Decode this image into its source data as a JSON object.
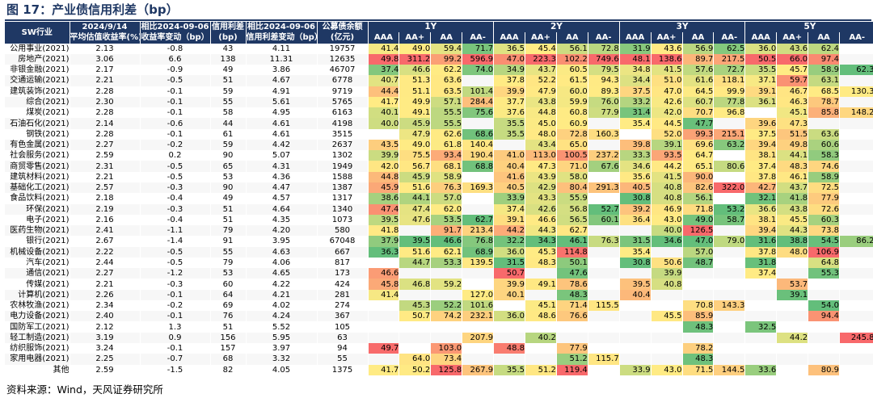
{
  "title": "图 17：产业债信用利差（bp）",
  "source": "资料来源：Wind，天风证券研究所",
  "header": {
    "row1": [
      "SW行业",
      "2024/9/14",
      "相比2024-09-06",
      "信用利差",
      "相比2024-09-06",
      "公募债余额"
    ],
    "row2": [
      "平均估值收益率(%)",
      "收益率变动（bp）",
      "(bp)",
      "信用利差变动（bp）",
      "(亿元)"
    ],
    "groups": [
      "1Y",
      "2Y",
      "3Y",
      "5Y"
    ],
    "ratings": [
      "AAA",
      "AA+",
      "AA",
      "AA-"
    ]
  },
  "colors": {
    "header_bg": "#1f3864",
    "low": "#63be7b",
    "mid": "#ffeb84",
    "high": "#f8696b"
  },
  "chart_data": {
    "type": "heatmap",
    "title": "图 17：产业债信用利差（bp）",
    "columns": [
      "SW行业",
      "2024/9/14 平均估值收益率(%)",
      "相比2024-09-06 收益率变动（bp）",
      "信用利差 (bp)",
      "相比2024-09-06 信用利差变动（bp）",
      "公募债余额 (亿元)",
      "1Y AAA",
      "1Y AA+",
      "1Y AA",
      "1Y AA-",
      "2Y AAA",
      "2Y AA+",
      "2Y AA",
      "2Y AA-",
      "3Y AAA",
      "3Y AA+",
      "3Y AA",
      "3Y AA-",
      "5Y AAA",
      "5Y AA+",
      "5Y AA",
      "5Y AA-"
    ],
    "rows": [
      [
        "公用事业(2021)",
        "2.13",
        "-0.8",
        "43",
        "4.11",
        "19757",
        "41.4",
        "49.0",
        "59.4",
        "71.7",
        "36.5",
        "45.4",
        "56.1",
        "72.8",
        "31.9",
        "43.6",
        "56.9",
        "62.5",
        "36.0",
        "43.6",
        "62.4",
        ""
      ],
      [
        "房地产(2021)",
        "3.06",
        "6.6",
        "138",
        "11.31",
        "12635",
        "49.8",
        "311.2",
        "99.2",
        "596.9",
        "47.0",
        "223.3",
        "102.2",
        "749.6",
        "48.1",
        "138.6",
        "89.7",
        "217.5",
        "50.5",
        "66.0",
        "97.4",
        ""
      ],
      [
        "非银金融(2021)",
        "2.17",
        "-0.9",
        "49",
        "3.86",
        "46707",
        "37.4",
        "46.6",
        "62.2",
        "74.0",
        "34.9",
        "43.7",
        "60.5",
        "79.5",
        "34.8",
        "41.5",
        "57.6",
        "72.7",
        "35.5",
        "45.7",
        "58.9",
        "62.3"
      ],
      [
        "交通运输(2021)",
        "2.21",
        "-0.5",
        "51",
        "4.67",
        "6778",
        "40.7",
        "51.3",
        "63.6",
        "",
        "37.8",
        "52.2",
        "61.5",
        "94.3",
        "34.4",
        "51.0",
        "61.6",
        "118.1",
        "37.1",
        "59.7",
        "63.1",
        ""
      ],
      [
        "建筑装饰(2021)",
        "2.28",
        "-0.1",
        "59",
        "4.91",
        "9719",
        "44.4",
        "51.1",
        "63.5",
        "101.4",
        "39.9",
        "47.9",
        "60.0",
        "89.3",
        "37.5",
        "47.0",
        "64.5",
        "99.9",
        "39.1",
        "46.7",
        "68.5",
        "130.3"
      ],
      [
        "综合(2021)",
        "2.30",
        "-0.1",
        "55",
        "5.61",
        "5765",
        "41.7",
        "49.9",
        "57.1",
        "284.4",
        "37.7",
        "43.8",
        "59.9",
        "76.0",
        "33.2",
        "42.6",
        "60.7",
        "77.8",
        "36.1",
        "46.3",
        "78.7",
        ""
      ],
      [
        "煤炭(2021)",
        "2.28",
        "-0.1",
        "58",
        "4.95",
        "6163",
        "40.1",
        "49.1",
        "55.5",
        "75.6",
        "37.6",
        "44.8",
        "60.8",
        "77.9",
        "31.4",
        "42.0",
        "70.7",
        "96.8",
        "",
        "45.1",
        "85.8",
        "148.2"
      ],
      [
        "石油石化(2021)",
        "2.14",
        "-0.6",
        "44",
        "4.61",
        "4198",
        "40.0",
        "45.9",
        "55.5",
        "",
        "35.5",
        "45.0",
        "60.9",
        "",
        "35.4",
        "44.5",
        "47.7",
        "",
        "39.6",
        "47.3",
        "",
        ""
      ],
      [
        "钢铁(2021)",
        "2.28",
        "-0.1",
        "61",
        "4.61",
        "3515",
        "",
        "47.9",
        "62.6",
        "68.6",
        "35.5",
        "48.0",
        "72.8",
        "160.3",
        "",
        "52.0",
        "99.3",
        "215.1",
        "37.5",
        "51.5",
        "63.6",
        ""
      ],
      [
        "有色金属(2021)",
        "2.27",
        "-0.2",
        "59",
        "4.42",
        "2637",
        "43.5",
        "49.0",
        "61.8",
        "140.4",
        "",
        "43.4",
        "65.0",
        "",
        "39.8",
        "39.1",
        "69.6",
        "63.2",
        "39.4",
        "49.8",
        "60.6",
        ""
      ],
      [
        "社会服务(2021)",
        "2.59",
        "0.2",
        "90",
        "5.07",
        "1302",
        "39.9",
        "75.5",
        "93.4",
        "190.4",
        "41.0",
        "113.0",
        "100.5",
        "237.2",
        "33.3",
        "93.5",
        "64.7",
        "",
        "38.1",
        "44.1",
        "58.3",
        ""
      ],
      [
        "商贸零售(2021)",
        "2.31",
        "-0.5",
        "65",
        "4.31",
        "1949",
        "42.0",
        "56.7",
        "68.1",
        "68.8",
        "40.4",
        "47.3",
        "71.0",
        "67.6",
        "34.6",
        "44.2",
        "65.1",
        "80.6",
        "37.4",
        "48.3",
        "74.6",
        ""
      ],
      [
        "建筑材料(2021)",
        "2.21",
        "-0.5",
        "53",
        "4.36",
        "1588",
        "44.8",
        "45.9",
        "58.9",
        "",
        "41.6",
        "43.9",
        "58.0",
        "",
        "35.6",
        "41.5",
        "90.0",
        "",
        "37.8",
        "46.1",
        "58.9",
        ""
      ],
      [
        "基础化工(2021)",
        "2.57",
        "-0.3",
        "90",
        "4.47",
        "1387",
        "45.9",
        "51.6",
        "76.3",
        "169.3",
        "40.5",
        "42.9",
        "80.4",
        "291.3",
        "40.5",
        "40.8",
        "82.6",
        "322.0",
        "42.7",
        "43.7",
        "72.5",
        ""
      ],
      [
        "食品饮料(2021)",
        "2.18",
        "-0.4",
        "49",
        "4.57",
        "1317",
        "38.6",
        "44.1",
        "57.0",
        "",
        "33.9",
        "43.3",
        "55.9",
        "",
        "30.8",
        "40.8",
        "56.1",
        "",
        "32.1",
        "41.8",
        "77.9",
        ""
      ],
      [
        "环保(2021)",
        "2.19",
        "-0.3",
        "51",
        "4.64",
        "1340",
        "47.4",
        "47.4",
        "62.0",
        "",
        "37.4",
        "42.6",
        "56.8",
        "52.7",
        "39.2",
        "46.9",
        "71.8",
        "53.2",
        "36.6",
        "43.8",
        "72.6",
        ""
      ],
      [
        "电子(2021)",
        "2.16",
        "-0.4",
        "51",
        "4.35",
        "1073",
        "39.5",
        "47.6",
        "53.5",
        "62.7",
        "39.1",
        "46.6",
        "56.5",
        "60.1",
        "36.4",
        "43.0",
        "49.0",
        "58.7",
        "38.1",
        "45.5",
        "60.3",
        ""
      ],
      [
        "医药生物(2021)",
        "2.41",
        "-1.1",
        "79",
        "4.20",
        "580",
        "41.8",
        "",
        "91.7",
        "213.4",
        "44.2",
        "44.3",
        "62.7",
        "",
        "",
        "40.0",
        "126.5",
        "",
        "39.4",
        "44.3",
        "73.8",
        ""
      ],
      [
        "银行(2021)",
        "2.67",
        "-1.4",
        "91",
        "3.95",
        "67048",
        "37.9",
        "39.5",
        "46.6",
        "76.8",
        "32.2",
        "34.3",
        "46.1",
        "76.3",
        "31.5",
        "34.6",
        "47.0",
        "79.0",
        "31.6",
        "38.8",
        "54.5",
        "86.2"
      ],
      [
        "机械设备(2021)",
        "2.22",
        "-0.5",
        "55",
        "4.63",
        "667",
        "36.3",
        "51.6",
        "62.1",
        "68.9",
        "36.0",
        "45.3",
        "114.8",
        "",
        "35.4",
        "",
        "57.0",
        "",
        "37.8",
        "48.0",
        "106.9",
        ""
      ],
      [
        "汽车(2021)",
        "2.44",
        "-0.5",
        "79",
        "4.06",
        "817",
        "",
        "44.7",
        "53.3",
        "139.5",
        "31.5",
        "48.3",
        "50.1",
        "",
        "30.8",
        "50.6",
        "48.7",
        "",
        "31.8",
        "",
        "64.8",
        ""
      ],
      [
        "通信(2021)",
        "2.27",
        "-1.2",
        "53",
        "4.65",
        "173",
        "46.6",
        "",
        "",
        "",
        "50.7",
        "",
        "47.6",
        "",
        "",
        "39.9",
        "",
        "",
        "37.4",
        "",
        "55.3",
        ""
      ],
      [
        "传媒(2021)",
        "2.21",
        "-0.3",
        "60",
        "4.22",
        "424",
        "45.8",
        "46.8",
        "59.2",
        "",
        "39.9",
        "49.1",
        "78.6",
        "",
        "39.5",
        "40.8",
        "",
        "",
        "",
        "53.7",
        "",
        ""
      ],
      [
        "计算机(2021)",
        "2.26",
        "-0.1",
        "64",
        "4.21",
        "281",
        "41.4",
        "",
        "",
        "127.0",
        "40.1",
        "",
        "48.3",
        "",
        "40.4",
        "",
        "",
        "",
        "",
        "39.1",
        "",
        ""
      ],
      [
        "农林牧渔(2021)",
        "2.34",
        "-0.2",
        "69",
        "4.02",
        "274",
        "",
        "45.3",
        "52.2",
        "101.6",
        "",
        "45.1",
        "71.4",
        "115.5",
        "",
        "",
        "70.8",
        "143.3",
        "",
        "",
        "54.0",
        ""
      ],
      [
        "电力设备(2021)",
        "2.40",
        "-0.1",
        "76",
        "4.24",
        "367",
        "",
        "50.7",
        "74.2",
        "232.1",
        "36.0",
        "48.6",
        "76.6",
        "",
        "",
        "45.5",
        "85.9",
        "",
        "",
        "",
        "94.4",
        ""
      ],
      [
        "国防军工(2021)",
        "2.12",
        "1.3",
        "51",
        "5.52",
        "105",
        "",
        "",
        "",
        "",
        "",
        "",
        "",
        "",
        "",
        "",
        "48.3",
        "",
        "32.5",
        "",
        "",
        ""
      ],
      [
        "轻工制造(2021)",
        "3.19",
        "0.9",
        "156",
        "5.95",
        "63",
        "",
        "",
        "",
        "207.9",
        "",
        "40.2",
        "",
        "",
        "",
        "",
        "",
        "",
        "",
        "44.2",
        "",
        "245.8"
      ],
      [
        "纺织服饰(2021)",
        "3.24",
        "-0.1",
        "157",
        "3.97",
        "94",
        "49.7",
        "",
        "103.0",
        "",
        "48.8",
        "",
        "77.9",
        "",
        "",
        "",
        "78.2",
        "",
        "",
        "",
        "",
        ""
      ],
      [
        "家用电器(2021)",
        "2.25",
        "-0.7",
        "68",
        "3.32",
        "55",
        "",
        "64.0",
        "73.4",
        "",
        "",
        "",
        "51.2",
        "115.7",
        "",
        "",
        "48.3",
        "",
        "",
        "",
        "",
        ""
      ],
      [
        "其他",
        "2.59",
        "-1.5",
        "82",
        "4.05",
        "1375",
        "41.7",
        "50.2",
        "125.8",
        "267.9",
        "35.5",
        "51.2",
        "119.4",
        "",
        "33.9",
        "43.0",
        "71.5",
        "144.5",
        "33.6",
        "",
        "80.9",
        ""
      ]
    ]
  }
}
